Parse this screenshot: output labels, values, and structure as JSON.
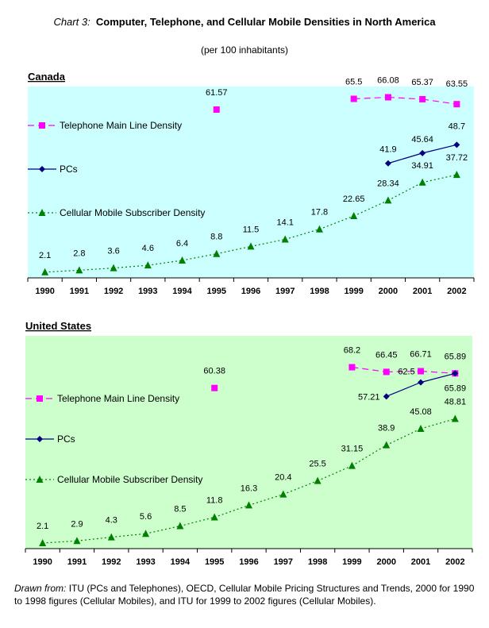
{
  "title_prefix": "Chart 3:",
  "title": "Computer, Telephone, and Cellular Mobile Densities in North America",
  "subtitle": "(per 100 inhabitants)",
  "note_prefix": "Drawn from:",
  "note": "ITU (PCs and Telephones), OECD, Cellular Mobile Pricing Structures and Trends, 2000 for 1990 to 1998 figures (Cellular Mobiles), and ITU for 1999 to 2002 figures (Cellular Mobiles).",
  "colors": {
    "telephone": "#ff00ff",
    "pcs": "#000080",
    "cellular": "#008000"
  },
  "chart_data": [
    {
      "type": "line",
      "title": "Canada",
      "background": "#ccffff",
      "ylim": [
        0,
        70
      ],
      "grid": false,
      "legend": "left",
      "categories": [
        "1990",
        "1991",
        "1992",
        "1993",
        "1994",
        "1995",
        "1996",
        "1997",
        "1998",
        "1999",
        "2000",
        "2001",
        "2002"
      ],
      "series": [
        {
          "name": "Telephone Main Line Density",
          "key": "telephone",
          "marker": "square",
          "dash": "dashed",
          "values": [
            null,
            null,
            null,
            null,
            null,
            61.57,
            null,
            null,
            null,
            65.5,
            66.08,
            65.37,
            63.55
          ]
        },
        {
          "name": "PCs",
          "key": "pcs",
          "marker": "diamond",
          "dash": "solid",
          "values": [
            null,
            null,
            null,
            null,
            null,
            null,
            null,
            null,
            null,
            null,
            41.9,
            45.64,
            48.7
          ]
        },
        {
          "name": "Cellular Mobile Subscriber Density",
          "key": "cellular",
          "marker": "triangle",
          "dash": "dotted",
          "values": [
            2.1,
            2.8,
            3.6,
            4.6,
            6.4,
            8.8,
            11.5,
            14.1,
            17.8,
            22.65,
            28.34,
            34.91,
            37.72
          ]
        }
      ]
    },
    {
      "type": "line",
      "title": "United States",
      "background": "#ccffcc",
      "ylim": [
        0,
        80
      ],
      "grid": false,
      "legend": "left",
      "categories": [
        "1990",
        "1991",
        "1992",
        "1993",
        "1994",
        "1995",
        "1996",
        "1997",
        "1998",
        "1999",
        "2000",
        "2001",
        "2002"
      ],
      "series": [
        {
          "name": "Telephone Main Line Density",
          "key": "telephone",
          "marker": "square",
          "dash": "dashed",
          "values": [
            null,
            null,
            null,
            null,
            null,
            60.38,
            null,
            null,
            null,
            68.2,
            66.45,
            66.71,
            65.89
          ]
        },
        {
          "name": "PCs",
          "key": "pcs",
          "marker": "diamond",
          "dash": "solid",
          "values": [
            null,
            null,
            null,
            null,
            null,
            null,
            null,
            null,
            null,
            null,
            57.21,
            62.5,
            65.89
          ]
        },
        {
          "name": "Cellular Mobile Subscriber Density",
          "key": "cellular",
          "marker": "triangle",
          "dash": "dotted",
          "values": [
            2.1,
            2.9,
            4.3,
            5.6,
            8.5,
            11.8,
            16.3,
            20.4,
            25.5,
            31.15,
            38.9,
            45.08,
            48.81
          ]
        }
      ]
    }
  ]
}
